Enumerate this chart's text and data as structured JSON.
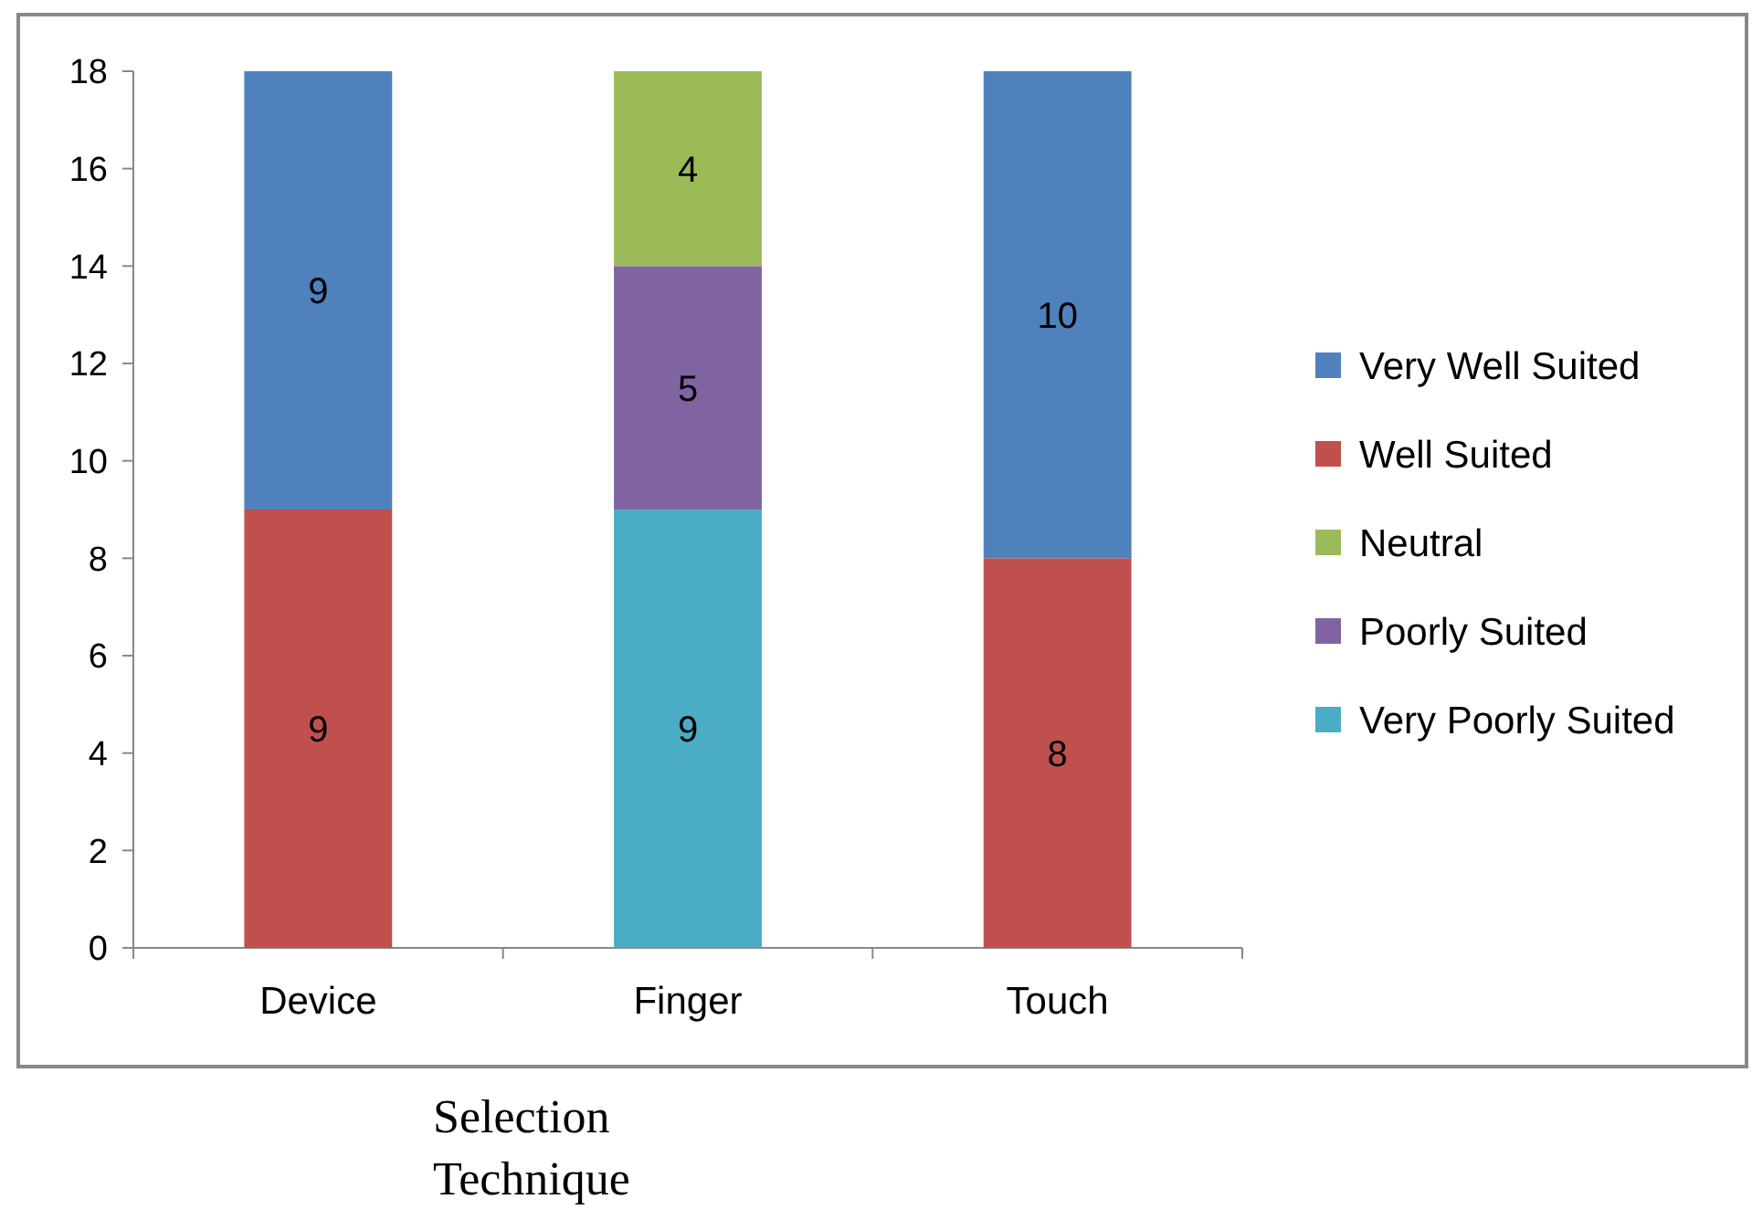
{
  "chart_data": {
    "type": "bar",
    "stacked": true,
    "xlabel": "Selection Technique",
    "categories": [
      "Device",
      "Finger",
      "Touch"
    ],
    "series": [
      {
        "name": "Very Poorly Suited",
        "color": "#4bacc6",
        "values": [
          null,
          9,
          null
        ]
      },
      {
        "name": "Poorly Suited",
        "color": "#8064a2",
        "values": [
          null,
          5,
          null
        ]
      },
      {
        "name": "Neutral",
        "color": "#9bbb59",
        "values": [
          null,
          4,
          null
        ]
      },
      {
        "name": "Well Suited",
        "color": "#c0504d",
        "values": [
          9,
          null,
          8
        ]
      },
      {
        "name": "Very Well Suited",
        "color": "#4f81bd",
        "values": [
          9,
          null,
          10
        ]
      }
    ],
    "ylim": [
      0,
      18
    ],
    "yticks": [
      0,
      2,
      4,
      6,
      8,
      10,
      12,
      14,
      16,
      18
    ],
    "data_labels": true,
    "legend": "right",
    "grid": false
  }
}
